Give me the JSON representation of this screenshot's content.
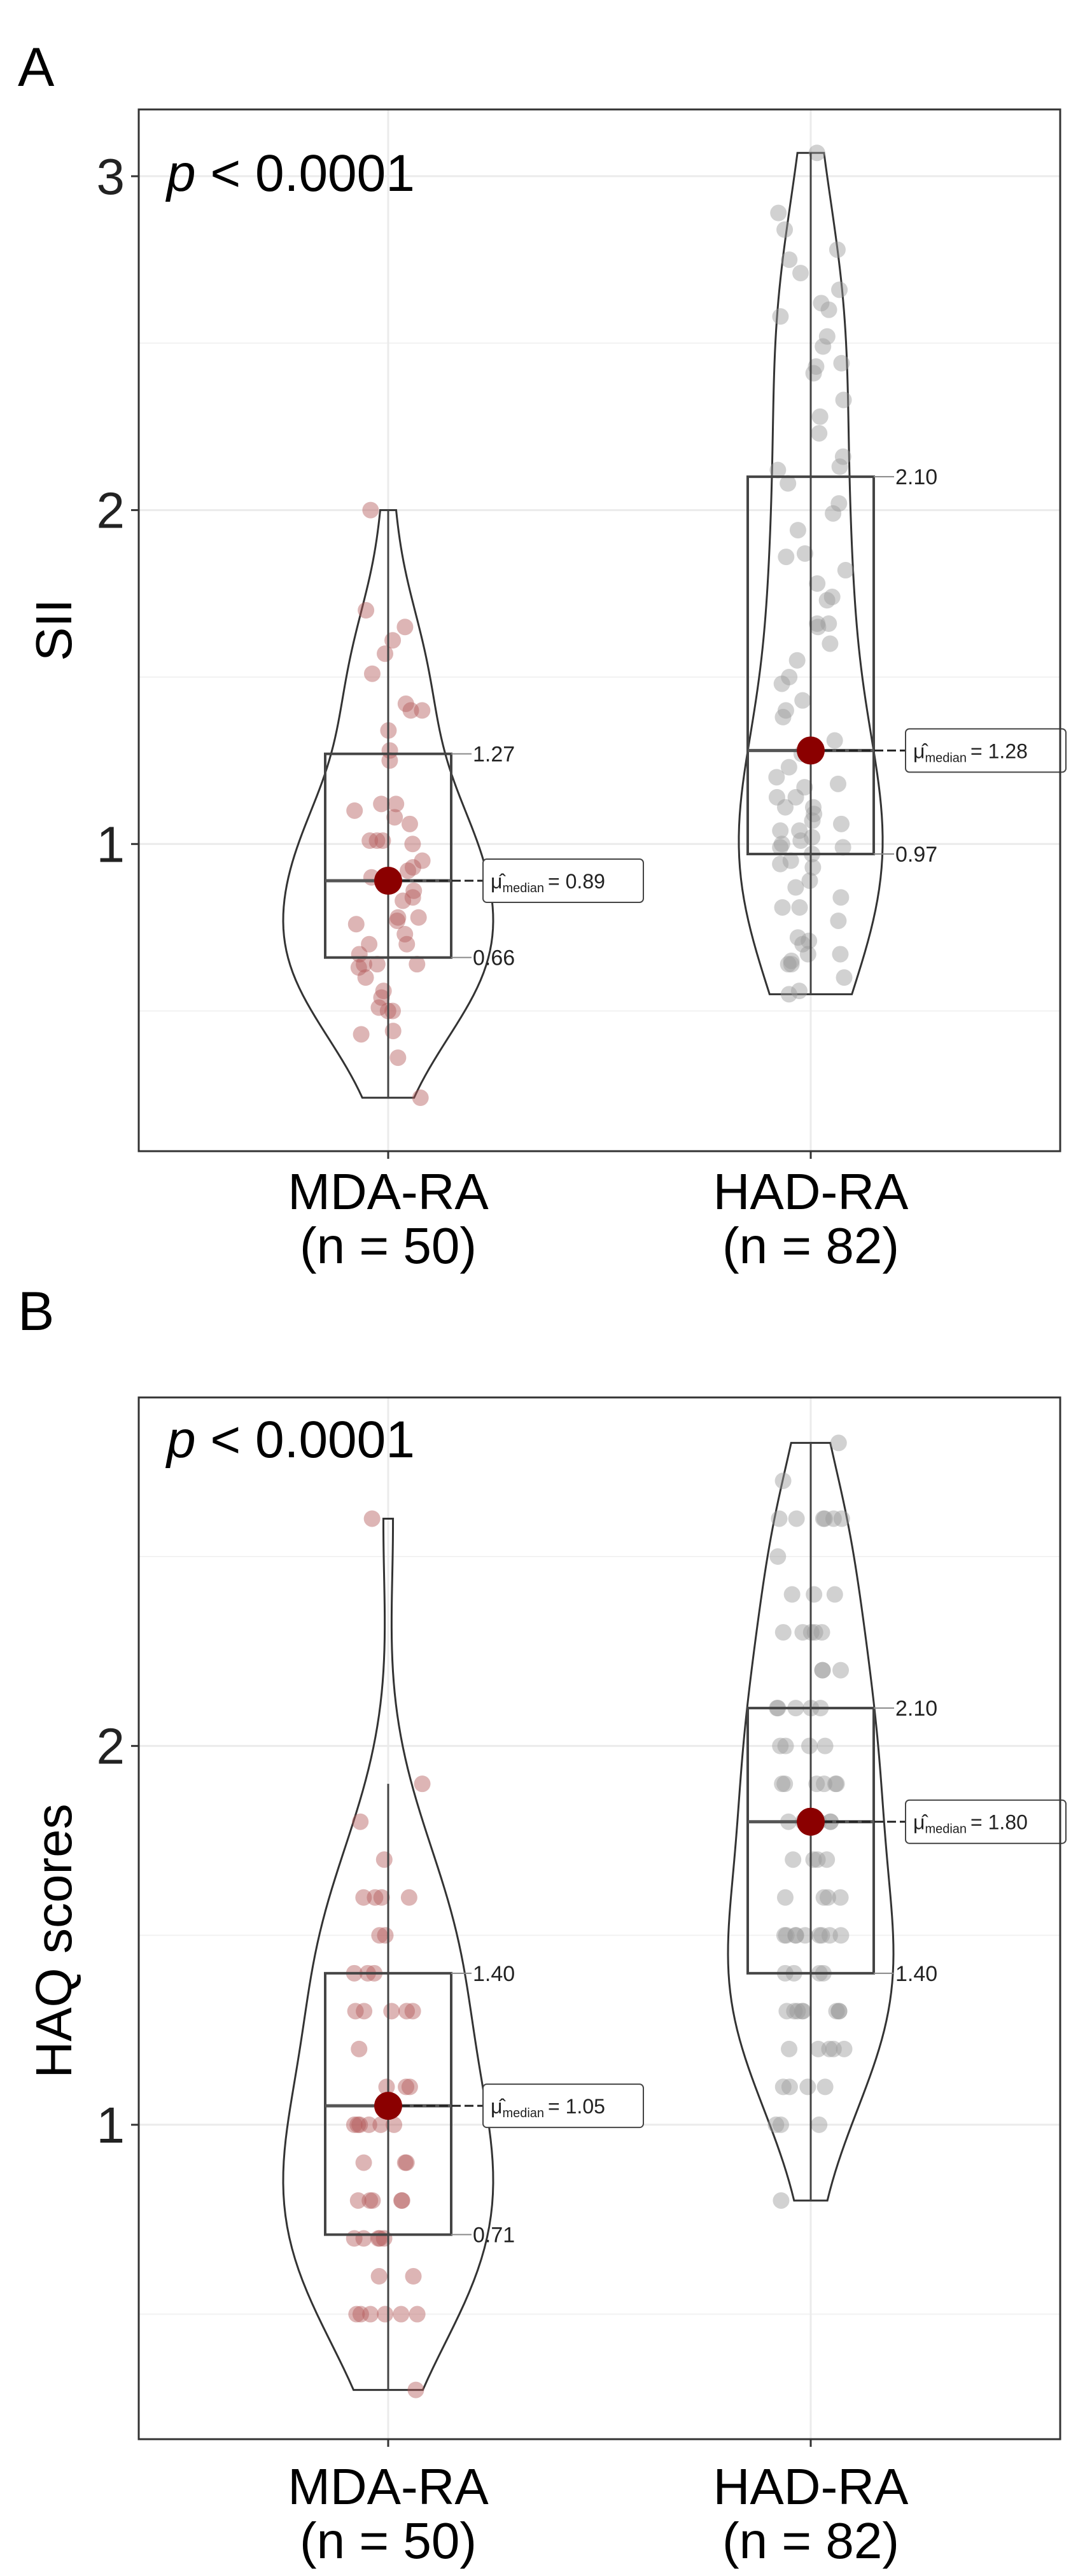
{
  "chart_data": [
    {
      "panel_label": "A",
      "type": "violin-box-jitter",
      "ylabel": "SII",
      "annotation": {
        "p_symbol": "p",
        "p_text": " < 0.0001"
      },
      "ylim": [
        0.08,
        3.2
      ],
      "yticks": [
        1,
        2,
        3
      ],
      "ytick_labels": [
        "1",
        "2",
        "3"
      ],
      "minor_grid": [
        0.5,
        1.5,
        2.5
      ],
      "grid": true,
      "groups": [
        {
          "name": "MDA-RA",
          "n_label": "(n = 50)",
          "color": "#b45a5a",
          "min": 0.24,
          "q1": 0.66,
          "median": 0.89,
          "q3": 1.27,
          "max": 2.0,
          "whisker_high": 2.0,
          "q1_label": "0.66",
          "q3_label": "1.27",
          "median_label": "= 0.89",
          "points": [
            1.7,
            1.65,
            1.61,
            1.57,
            1.51,
            1.4,
            1.42,
            1.34,
            1.28,
            1.25,
            1.1,
            1.08,
            1.12,
            1.12,
            1.0,
            1.01,
            1.01,
            1.01,
            0.95,
            0.83,
            0.86,
            0.84,
            0.76,
            0.77,
            0.78,
            0.7,
            0.7,
            0.64,
            0.64,
            0.6,
            0.64,
            0.5,
            0.51,
            0.54,
            0.44,
            0.43,
            0.36,
            0.24,
            2.0,
            0.9,
            0.92,
            0.93,
            0.78,
            0.63,
            0.5,
            1.06,
            0.73,
            0.67,
            0.56,
            1.4
          ]
        },
        {
          "name": "HAD-RA",
          "n_label": "(n = 82)",
          "color": "#9a9a9a",
          "min": 0.55,
          "q1": 0.97,
          "median": 1.28,
          "q3": 2.1,
          "max": 3.07,
          "whisker_high": 3.07,
          "q1_label": "0.97",
          "q3_label": "2.10",
          "median_label": "= 1.28",
          "points": [
            3.07,
            2.89,
            2.71,
            2.78,
            2.75,
            2.66,
            2.62,
            2.6,
            2.58,
            2.49,
            2.44,
            2.43,
            2.41,
            2.28,
            2.23,
            2.16,
            2.13,
            2.12,
            1.99,
            2.02,
            1.94,
            1.86,
            1.82,
            1.78,
            1.73,
            1.65,
            1.66,
            1.66,
            1.55,
            1.5,
            1.48,
            1.43,
            1.18,
            1.17,
            1.14,
            1.2,
            1.14,
            1.09,
            1.02,
            1.01,
            1.04,
            1.04,
            1.0,
            0.99,
            0.99,
            0.95,
            0.93,
            0.89,
            0.81,
            0.81,
            0.7,
            0.67,
            0.67,
            0.64,
            0.64,
            0.6,
            0.56,
            0.55,
            1.07,
            0.94,
            0.97,
            1.27,
            1.4,
            1.6,
            1.23,
            1.11,
            0.77,
            0.84,
            1.11,
            2.33,
            2.52,
            2.84,
            2.08,
            1.87,
            1.74,
            1.38,
            1.31,
            1.06,
            0.72,
            0.71,
            0.65,
            0.87
          ]
        }
      ]
    },
    {
      "panel_label": "B",
      "type": "violin-box-jitter",
      "ylabel": "HAQ scores",
      "annotation": {
        "p_symbol": "p",
        "p_text": " < 0.0001"
      },
      "ylim": [
        0.17,
        2.92
      ],
      "yticks": [
        1,
        2
      ],
      "ytick_labels": [
        "1",
        "2"
      ],
      "minor_grid": [
        0.5,
        1.5,
        2.5
      ],
      "grid": true,
      "groups": [
        {
          "name": "MDA-RA",
          "n_label": "(n = 50)",
          "color": "#b45a5a",
          "min": 0.3,
          "q1": 0.71,
          "median": 1.05,
          "q3": 1.4,
          "max": 2.6,
          "whisker_high": 1.9,
          "q1_label": "0.71",
          "q3_label": "1.40",
          "median_label": "= 1.05",
          "points": [
            2.6,
            1.9,
            1.8,
            1.7,
            1.6,
            1.6,
            1.6,
            1.6,
            1.5,
            1.5,
            1.4,
            1.4,
            1.3,
            1.3,
            1.3,
            1.3,
            1.2,
            1.1,
            1.1,
            1.0,
            1.0,
            1.0,
            1.0,
            1.0,
            0.9,
            0.9,
            0.8,
            0.8,
            0.8,
            0.8,
            0.7,
            0.7,
            0.7,
            0.7,
            0.6,
            0.6,
            0.5,
            0.5,
            0.5,
            0.5,
            0.5,
            0.3,
            1.3,
            1.4,
            1.1,
            0.9,
            0.7,
            1.0,
            0.8,
            0.5
          ]
        },
        {
          "name": "HAD-RA",
          "n_label": "(n = 82)",
          "color": "#9a9a9a",
          "min": 0.8,
          "q1": 1.4,
          "median": 1.8,
          "q3": 2.1,
          "max": 2.8,
          "whisker_high": 2.8,
          "q1_label": "1.40",
          "q3_label": "2.10",
          "median_label": "= 1.80",
          "points": [
            2.8,
            2.7,
            2.6,
            2.6,
            2.6,
            2.6,
            2.6,
            2.5,
            2.4,
            2.4,
            2.3,
            2.3,
            2.3,
            2.3,
            2.2,
            2.2,
            2.1,
            2.1,
            2.1,
            2.1,
            2.0,
            2.0,
            2.0,
            1.9,
            1.9,
            1.9,
            1.9,
            1.9,
            1.8,
            1.8,
            1.8,
            1.7,
            1.7,
            1.7,
            1.6,
            1.6,
            1.6,
            1.5,
            1.5,
            1.5,
            1.5,
            1.5,
            1.5,
            1.4,
            1.4,
            1.4,
            1.3,
            1.3,
            1.3,
            1.3,
            1.3,
            1.3,
            1.2,
            1.2,
            1.2,
            1.2,
            1.1,
            1.1,
            1.1,
            1.0,
            1.0,
            0.8,
            1.5,
            1.5,
            1.3,
            1.3,
            1.9,
            2.0,
            1.6,
            1.7,
            1.2,
            2.1,
            2.3,
            1.8,
            1.4,
            1.1,
            2.4,
            1.0,
            2.6,
            2.2,
            1.8,
            1.5
          ]
        }
      ]
    }
  ],
  "colors": {
    "median_point": "#8b0000",
    "outline": "#333333",
    "grid": "#ebebeb"
  },
  "median_symbol": "μ̂",
  "median_subscript": "median"
}
